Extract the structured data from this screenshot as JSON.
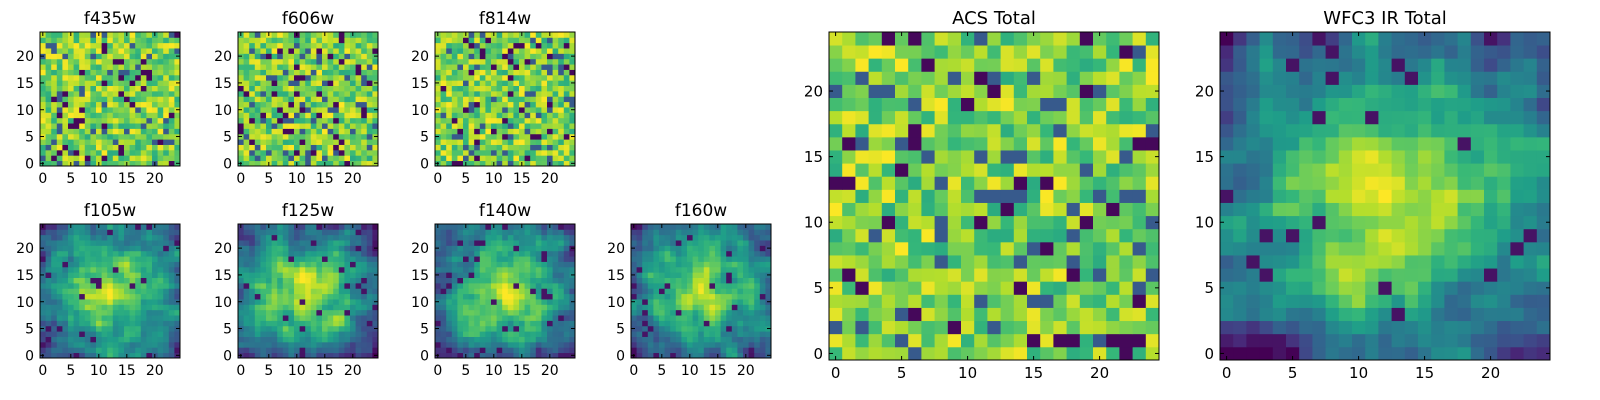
{
  "figure": {
    "background": "#ffffff"
  },
  "chart_data": [
    {
      "type": "heatmap",
      "title": "f435w",
      "grid_size": 25,
      "xticks": [
        "0",
        "5",
        "10",
        "15",
        "20"
      ],
      "yticks": [
        "0",
        "5",
        "10",
        "15",
        "20"
      ],
      "colormap": "viridis",
      "pattern": "noise",
      "seed": 11
    },
    {
      "type": "heatmap",
      "title": "f606w",
      "grid_size": 25,
      "xticks": [
        "0",
        "5",
        "10",
        "15",
        "20"
      ],
      "yticks": [
        "0",
        "5",
        "10",
        "15",
        "20"
      ],
      "colormap": "viridis",
      "pattern": "noise",
      "seed": 23
    },
    {
      "type": "heatmap",
      "title": "f814w",
      "grid_size": 25,
      "xticks": [
        "0",
        "5",
        "10",
        "15",
        "20"
      ],
      "yticks": [
        "0",
        "5",
        "10",
        "15",
        "20"
      ],
      "colormap": "viridis",
      "pattern": "noise",
      "seed": 37
    },
    {
      "type": "heatmap",
      "title": "f105w",
      "grid_size": 25,
      "xticks": [
        "0",
        "5",
        "10",
        "15",
        "20"
      ],
      "yticks": [
        "0",
        "5",
        "10",
        "15",
        "20"
      ],
      "colormap": "viridis",
      "pattern": "central-bright",
      "seed": 41
    },
    {
      "type": "heatmap",
      "title": "f125w",
      "grid_size": 25,
      "xticks": [
        "0",
        "5",
        "10",
        "15",
        "20"
      ],
      "yticks": [
        "0",
        "5",
        "10",
        "15",
        "20"
      ],
      "colormap": "viridis",
      "pattern": "central-bright",
      "seed": 53
    },
    {
      "type": "heatmap",
      "title": "f140w",
      "grid_size": 25,
      "xticks": [
        "0",
        "5",
        "10",
        "15",
        "20"
      ],
      "yticks": [
        "0",
        "5",
        "10",
        "15",
        "20"
      ],
      "colormap": "viridis",
      "pattern": "central-bright",
      "seed": 67
    },
    {
      "type": "heatmap",
      "title": "f160w",
      "grid_size": 25,
      "xticks": [
        "0",
        "5",
        "10",
        "15",
        "20"
      ],
      "yticks": [
        "0",
        "5",
        "10",
        "15",
        "20"
      ],
      "colormap": "viridis",
      "pattern": "central-bright",
      "seed": 79
    },
    {
      "type": "heatmap",
      "title": "ACS Total",
      "grid_size": 25,
      "xticks": [
        "0",
        "5",
        "10",
        "15",
        "20"
      ],
      "yticks": [
        "0",
        "5",
        "10",
        "15",
        "20"
      ],
      "colormap": "viridis",
      "pattern": "noise",
      "seed": 83
    },
    {
      "type": "heatmap",
      "title": "WFC3 IR Total",
      "grid_size": 25,
      "xticks": [
        "0",
        "5",
        "10",
        "15",
        "20"
      ],
      "yticks": [
        "0",
        "5",
        "10",
        "15",
        "20"
      ],
      "colormap": "viridis",
      "pattern": "central-bright",
      "seed": 97
    }
  ]
}
